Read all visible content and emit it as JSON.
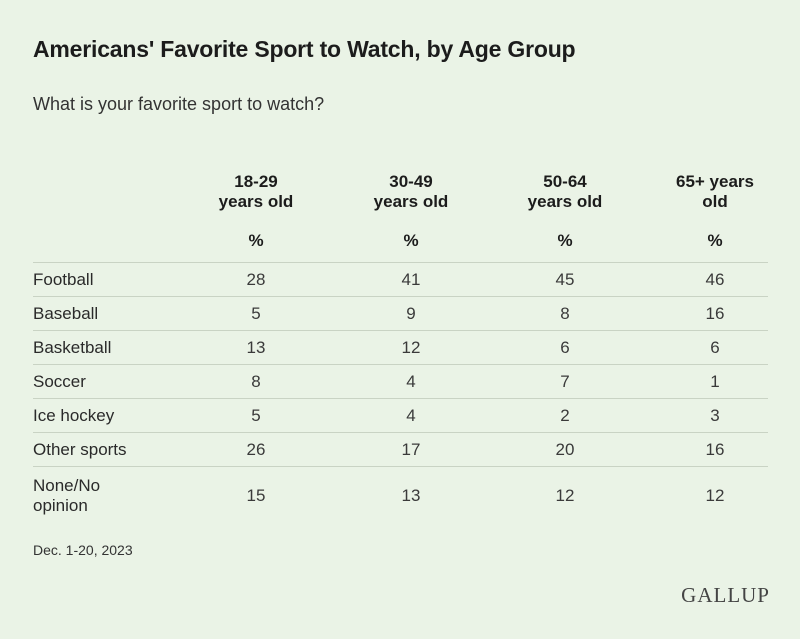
{
  "chart_data": {
    "type": "table",
    "title": "Americans' Favorite Sport to Watch, by Age Group",
    "subtitle": "What is your favorite sport to watch?",
    "columns": [
      "18-29 years old",
      "30-49 years old",
      "50-64 years old",
      "65+ years old"
    ],
    "column_lines": [
      [
        "18-29",
        "years old"
      ],
      [
        "30-49",
        "years old"
      ],
      [
        "50-64",
        "years old"
      ],
      [
        "65+ years",
        "old"
      ]
    ],
    "unit": "%",
    "rows": [
      {
        "label": "Football",
        "label_lines": [
          "Football"
        ],
        "values": [
          28,
          41,
          45,
          46
        ]
      },
      {
        "label": "Baseball",
        "label_lines": [
          "Baseball"
        ],
        "values": [
          5,
          9,
          8,
          16
        ]
      },
      {
        "label": "Basketball",
        "label_lines": [
          "Basketball"
        ],
        "values": [
          13,
          12,
          6,
          6
        ]
      },
      {
        "label": "Soccer",
        "label_lines": [
          "Soccer"
        ],
        "values": [
          8,
          4,
          7,
          1
        ]
      },
      {
        "label": "Ice hockey",
        "label_lines": [
          "Ice hockey"
        ],
        "values": [
          5,
          4,
          2,
          3
        ]
      },
      {
        "label": "Other sports",
        "label_lines": [
          "Other sports"
        ],
        "values": [
          26,
          17,
          20,
          16
        ]
      },
      {
        "label": "None/No opinion",
        "label_lines": [
          "None/No",
          "opinion"
        ],
        "values": [
          15,
          13,
          12,
          12
        ]
      }
    ]
  },
  "footer": {
    "date": "Dec. 1-20, 2023",
    "logo": "GALLUP"
  },
  "colors": {
    "background": "#eaf3e6",
    "rule": "#c9d3c4",
    "text": "#222222"
  }
}
